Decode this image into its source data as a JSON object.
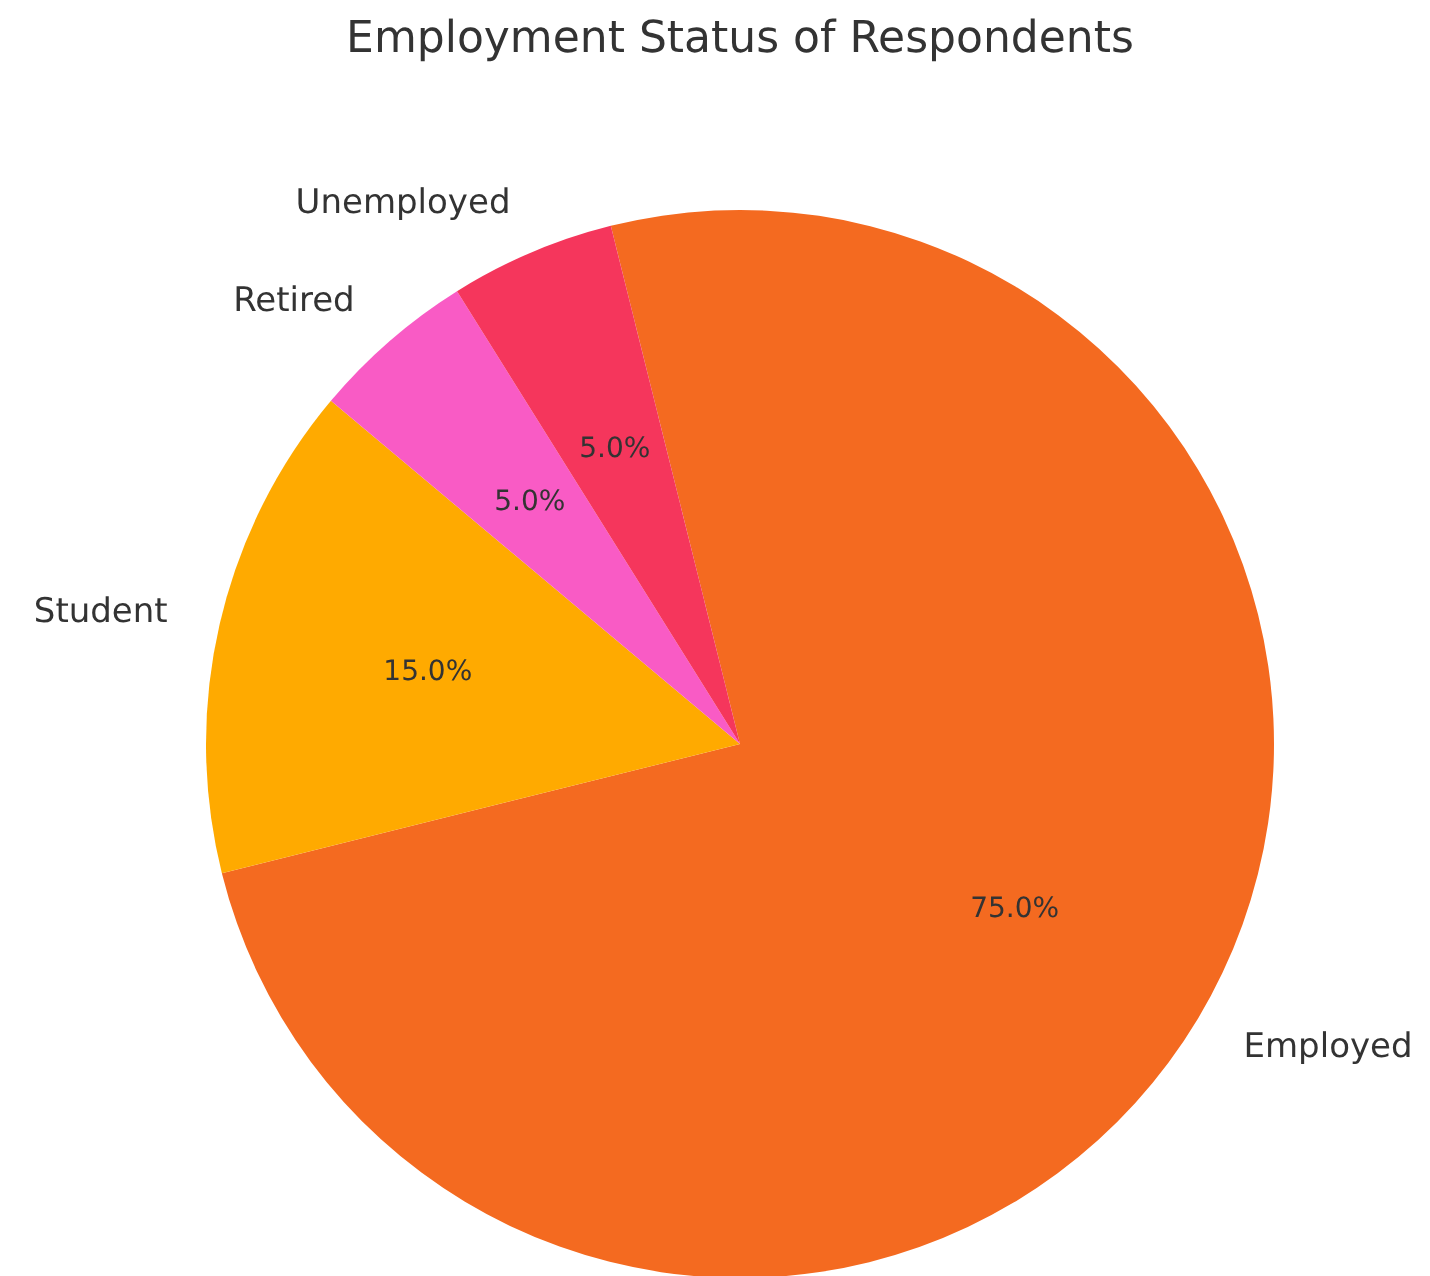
{
  "chart_data": {
    "type": "pie",
    "title": "Employment Status of Respondents",
    "categories": [
      "Employed",
      "Student",
      "Retired",
      "Unemployed"
    ],
    "values": [
      75,
      15,
      5,
      5
    ],
    "colors": [
      "#f46a20",
      "#ffaa00",
      "#f95bc5",
      "#f5365c"
    ],
    "value_labels": [
      "75.0%",
      "15.0%",
      "5.0%",
      "5.0%"
    ]
  }
}
